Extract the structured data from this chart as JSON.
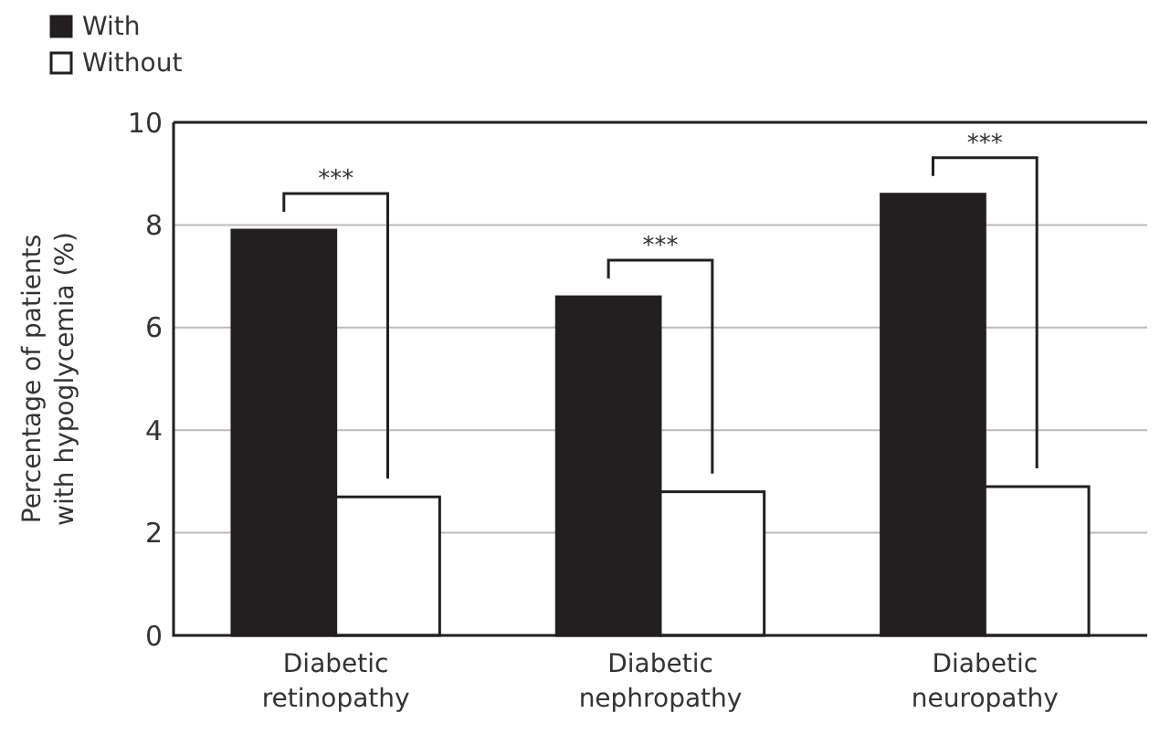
{
  "chart_data": {
    "type": "bar",
    "ylabel": "Percentage of patients with hypoglycemia (%)",
    "categories": [
      "Diabetic retinopathy",
      "Diabetic nephropathy",
      "Diabetic neuropathy"
    ],
    "series": [
      {
        "name": "With",
        "color": "#231f20",
        "values": [
          7.9,
          6.6,
          8.6
        ]
      },
      {
        "name": "Without",
        "color": "#ffffff",
        "values": [
          2.7,
          2.8,
          2.9
        ]
      }
    ],
    "ylim": [
      0,
      10
    ],
    "yticks": [
      0,
      2,
      4,
      6,
      8,
      10
    ],
    "grid": "y",
    "legend": "top left",
    "annotations": [
      "***",
      "***",
      "***"
    ]
  }
}
